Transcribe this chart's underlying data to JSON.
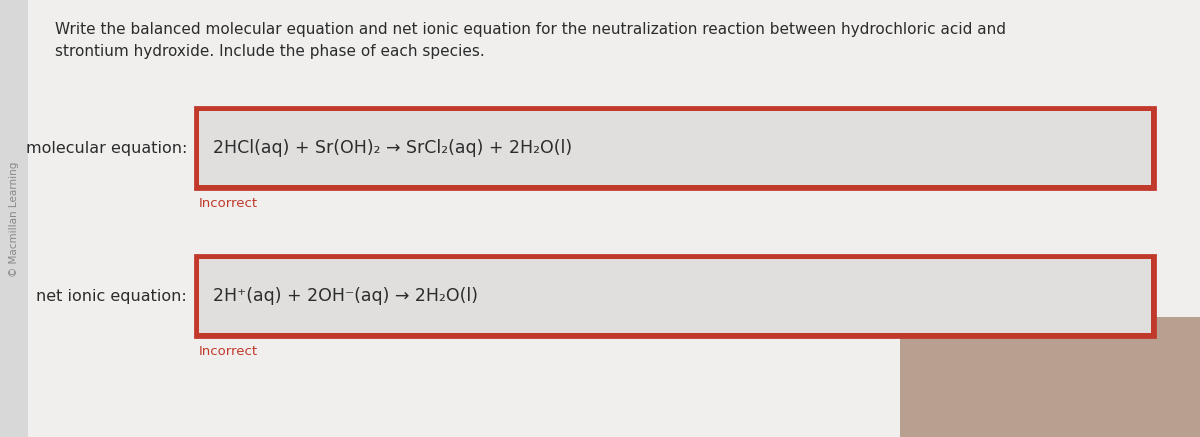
{
  "bg_color": "#d8d8d8",
  "panel_color": "#f0efee",
  "box_inner_color": "#e8e7e6",
  "box_outer_border": "#c0392b",
  "copyright_text": "© Macmillan Learning",
  "prompt_line1": "Write the balanced molecular equation and net ionic equation for the neutralization reaction between hydrochloric acid and",
  "prompt_line2": "strontium hydroxide. Include the phase of each species.",
  "mol_label": "molecular equation:",
  "mol_equation": "2HCl(aq) + Sr(OH)₂ → SrCl₂(aq) + 2H₂O(l)",
  "incorrect_text": "Incorrect",
  "net_label": "net ionic equation:",
  "net_equation": "2H⁺(aq) + 2OH⁻(aq) → 2H₂O(l)",
  "incorrect_color": "#c0392b",
  "text_color": "#2c2c2c",
  "label_color": "#2c2c2c",
  "copyright_color": "#888888",
  "font_size_prompt": 11.0,
  "font_size_equation": 12.5,
  "font_size_label": 11.5,
  "font_size_incorrect": 9.5,
  "font_size_copyright": 7.5
}
